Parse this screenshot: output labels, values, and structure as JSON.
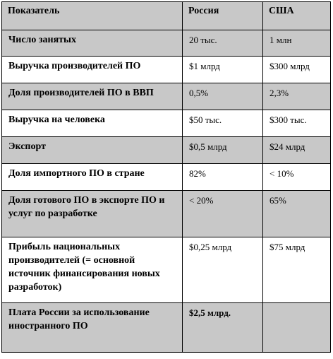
{
  "table": {
    "headers": [
      "Показатель",
      "Россия",
      "США"
    ],
    "rows": [
      {
        "metric": "Число занятых",
        "russia": "20 тыс.",
        "usa": "1 млн"
      },
      {
        "metric": "Выручка производителей ПО",
        "russia": "$1 млрд",
        "usa": "$300 млрд"
      },
      {
        "metric": "Доля производителей ПО в ВВП",
        "russia": "0,5%",
        "usa": "2,3%"
      },
      {
        "metric": "Выручка на человека",
        "russia": "$50 тыс.",
        "usa": "$300 тыс."
      },
      {
        "metric": "Экспорт",
        "russia": "$0,5 млрд",
        "usa": "$24 млрд"
      },
      {
        "metric": "Доля импортного ПО в стране",
        "russia": "82%",
        "usa": "< 10%"
      },
      {
        "metric": "Доля готового ПО в экспорте ПО и услуг по разработке",
        "russia": "< 20%",
        "usa": "65%"
      },
      {
        "metric": "Прибыль национальных производителей (= основной источник финансирования новых разработок)",
        "russia": "$0,25 млрд",
        "usa": "$75 млрд"
      },
      {
        "metric": "Плата России за использование иностранного ПО",
        "russia": "$2,5 млрд.",
        "usa": ""
      }
    ]
  },
  "colors": {
    "shaded_row": "#c8c8c8",
    "plain_row": "#ffffff",
    "border": "#000000"
  }
}
